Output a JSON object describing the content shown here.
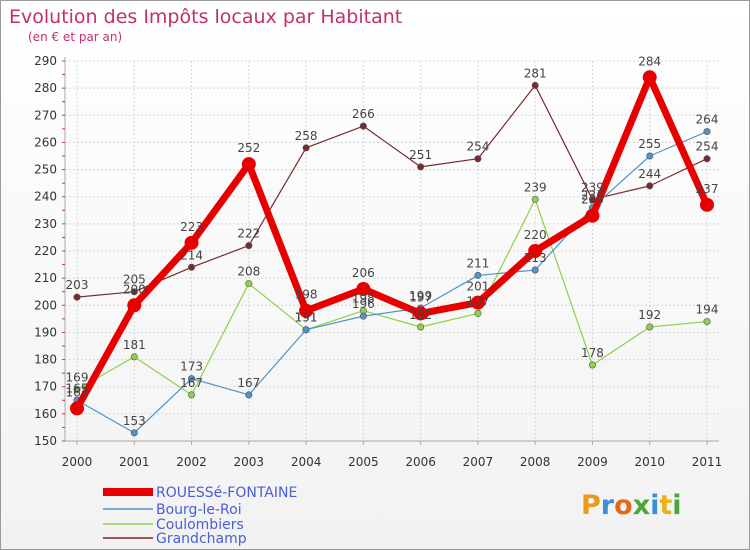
{
  "chart_data": {
    "type": "line",
    "title": "Evolution des Impôts locaux par Habitant",
    "subtitle": "(en € et par an)",
    "xlabel": "",
    "ylabel": "",
    "x": [
      "2000",
      "2001",
      "2002",
      "2003",
      "2004",
      "2005",
      "2006",
      "2007",
      "2008",
      "2009",
      "2010",
      "2011"
    ],
    "ylim": [
      150,
      290
    ],
    "yticks": [
      150,
      160,
      170,
      180,
      190,
      200,
      210,
      220,
      230,
      240,
      250,
      260,
      270,
      280,
      290
    ],
    "grid": true,
    "legend_position": "bottom-left",
    "series": [
      {
        "name": "ROUESSé-FONTAINE",
        "color": "#e80000",
        "values": [
          162,
          200,
          223,
          252,
          198,
          206,
          197,
          201,
          220,
          233,
          284,
          237
        ]
      },
      {
        "name": "Bourg-le-Roi",
        "color": "#4f93c9",
        "values": [
          165,
          153,
          173,
          167,
          191,
          196,
          199,
          211,
          213,
          236,
          255,
          264
        ]
      },
      {
        "name": "Coulombiers",
        "color": "#8ed14a",
        "values": [
          169,
          181,
          167,
          208,
          191,
          198,
          192,
          197,
          239,
          178,
          192,
          194
        ]
      },
      {
        "name": "Grandchamp",
        "color": "#7a2a2a",
        "values": [
          203,
          205,
          214,
          222,
          258,
          266,
          251,
          254,
          281,
          239,
          244,
          254
        ]
      }
    ]
  },
  "logo": {
    "letters": [
      "P",
      "r",
      "o",
      "x",
      "i",
      "t",
      "i"
    ],
    "colors": [
      "#e89b1c",
      "#3a8fd6",
      "#e06a1c",
      "#4aa63a",
      "#3a8fd6",
      "#e8b21c",
      "#4aa63a"
    ]
  }
}
